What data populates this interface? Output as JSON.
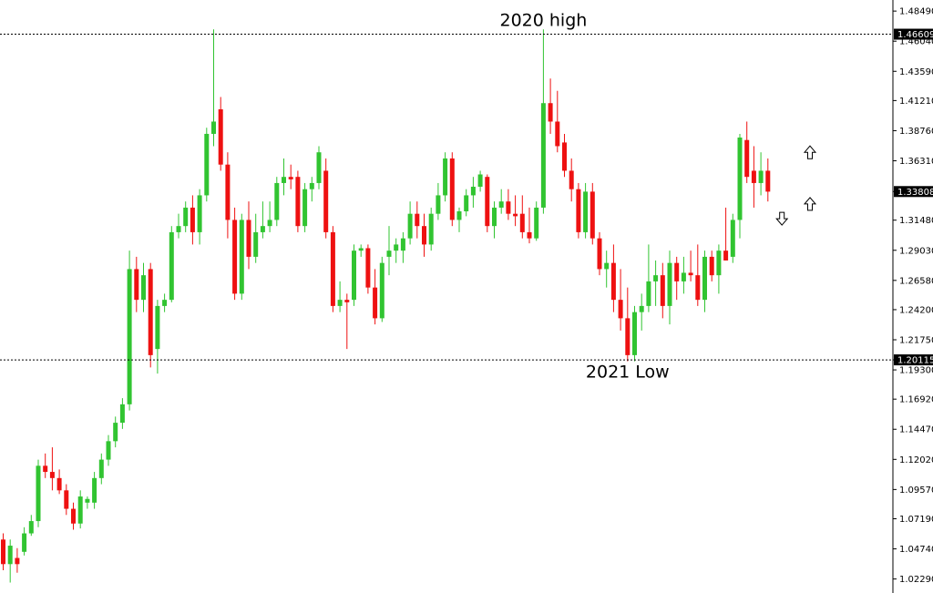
{
  "chart_data": {
    "type": "candlestick",
    "colors": {
      "up": "#31c431",
      "down": "#ee1111",
      "axis": "#000000"
    },
    "y_axis": {
      "ticks": [
        "1.48490",
        "1.46040",
        "1.43590",
        "1.41210",
        "1.38760",
        "1.36310",
        "1.33808",
        "1.31480",
        "1.29030",
        "1.26580",
        "1.24200",
        "1.21750",
        "1.20115",
        "1.19300",
        "1.16920",
        "1.14470",
        "1.12020",
        "1.09570",
        "1.07190",
        "1.04740",
        "1.02290"
      ],
      "range": [
        1.0115,
        1.4939
      ]
    },
    "horizontal_lines": [
      {
        "value": 1.46609,
        "label": "1.46609",
        "style": "dotted"
      },
      {
        "value": 1.20115,
        "label": "1.20115",
        "style": "dotted"
      }
    ],
    "current_price": {
      "value": 1.33808,
      "label": "1.33808"
    },
    "annotations": [
      {
        "text": "2020 high",
        "x_index": 77,
        "y": 1.478
      },
      {
        "text": "2021 Low",
        "x_index": 89,
        "y": 1.192
      }
    ],
    "markers": [
      {
        "icon": "arrow-up-icon",
        "x_index": 115,
        "y": 1.37
      },
      {
        "icon": "arrow-up-icon",
        "x_index": 115,
        "y": 1.328
      },
      {
        "icon": "arrow-down-icon",
        "x_index": 111,
        "y": 1.316
      }
    ],
    "candles": [
      [
        1.055,
        1.06,
        1.03,
        1.035
      ],
      [
        1.035,
        1.055,
        1.02,
        1.05
      ],
      [
        1.04,
        1.048,
        1.028,
        1.035
      ],
      [
        1.045,
        1.065,
        1.042,
        1.06
      ],
      [
        1.06,
        1.075,
        1.058,
        1.07
      ],
      [
        1.07,
        1.12,
        1.065,
        1.115
      ],
      [
        1.115,
        1.125,
        1.105,
        1.11
      ],
      [
        1.11,
        1.13,
        1.095,
        1.105
      ],
      [
        1.105,
        1.112,
        1.092,
        1.095
      ],
      [
        1.095,
        1.1,
        1.075,
        1.08
      ],
      [
        1.08,
        1.085,
        1.063,
        1.068
      ],
      [
        1.068,
        1.095,
        1.064,
        1.09
      ],
      [
        1.085,
        1.09,
        1.08,
        1.088
      ],
      [
        1.085,
        1.11,
        1.08,
        1.105
      ],
      [
        1.105,
        1.125,
        1.1,
        1.12
      ],
      [
        1.12,
        1.14,
        1.115,
        1.135
      ],
      [
        1.135,
        1.155,
        1.13,
        1.15
      ],
      [
        1.15,
        1.17,
        1.145,
        1.165
      ],
      [
        1.165,
        1.29,
        1.16,
        1.275
      ],
      [
        1.275,
        1.285,
        1.24,
        1.25
      ],
      [
        1.25,
        1.28,
        1.24,
        1.27
      ],
      [
        1.275,
        1.28,
        1.195,
        1.205
      ],
      [
        1.21,
        1.25,
        1.19,
        1.245
      ],
      [
        1.245,
        1.255,
        1.24,
        1.25
      ],
      [
        1.25,
        1.31,
        1.248,
        1.305
      ],
      [
        1.305,
        1.32,
        1.3,
        1.31
      ],
      [
        1.31,
        1.33,
        1.305,
        1.325
      ],
      [
        1.325,
        1.335,
        1.295,
        1.305
      ],
      [
        1.305,
        1.34,
        1.295,
        1.335
      ],
      [
        1.335,
        1.39,
        1.33,
        1.385
      ],
      [
        1.385,
        1.47,
        1.375,
        1.395
      ],
      [
        1.405,
        1.415,
        1.355,
        1.36
      ],
      [
        1.36,
        1.37,
        1.3,
        1.315
      ],
      [
        1.315,
        1.325,
        1.25,
        1.255
      ],
      [
        1.255,
        1.32,
        1.25,
        1.315
      ],
      [
        1.315,
        1.33,
        1.275,
        1.285
      ],
      [
        1.285,
        1.32,
        1.28,
        1.305
      ],
      [
        1.305,
        1.33,
        1.3,
        1.31
      ],
      [
        1.31,
        1.33,
        1.305,
        1.315
      ],
      [
        1.315,
        1.35,
        1.31,
        1.345
      ],
      [
        1.345,
        1.365,
        1.335,
        1.35
      ],
      [
        1.35,
        1.36,
        1.34,
        1.348
      ],
      [
        1.35,
        1.355,
        1.305,
        1.31
      ],
      [
        1.31,
        1.345,
        1.305,
        1.34
      ],
      [
        1.34,
        1.35,
        1.33,
        1.345
      ],
      [
        1.345,
        1.375,
        1.34,
        1.37
      ],
      [
        1.355,
        1.365,
        1.3,
        1.305
      ],
      [
        1.305,
        1.31,
        1.24,
        1.245
      ],
      [
        1.245,
        1.265,
        1.24,
        1.25
      ],
      [
        1.25,
        1.255,
        1.21,
        1.248
      ],
      [
        1.25,
        1.295,
        1.245,
        1.29
      ],
      [
        1.29,
        1.295,
        1.285,
        1.292
      ],
      [
        1.292,
        1.295,
        1.255,
        1.26
      ],
      [
        1.26,
        1.275,
        1.23,
        1.235
      ],
      [
        1.235,
        1.285,
        1.232,
        1.28
      ],
      [
        1.285,
        1.31,
        1.27,
        1.29
      ],
      [
        1.29,
        1.3,
        1.28,
        1.295
      ],
      [
        1.29,
        1.305,
        1.28,
        1.3
      ],
      [
        1.3,
        1.33,
        1.295,
        1.32
      ],
      [
        1.32,
        1.33,
        1.3,
        1.31
      ],
      [
        1.31,
        1.32,
        1.285,
        1.295
      ],
      [
        1.295,
        1.325,
        1.29,
        1.32
      ],
      [
        1.32,
        1.345,
        1.315,
        1.335
      ],
      [
        1.335,
        1.37,
        1.33,
        1.365
      ],
      [
        1.365,
        1.37,
        1.31,
        1.315
      ],
      [
        1.315,
        1.325,
        1.305,
        1.322
      ],
      [
        1.322,
        1.34,
        1.318,
        1.335
      ],
      [
        1.335,
        1.35,
        1.325,
        1.342
      ],
      [
        1.342,
        1.355,
        1.338,
        1.352
      ],
      [
        1.35,
        1.352,
        1.305,
        1.31
      ],
      [
        1.31,
        1.33,
        1.3,
        1.325
      ],
      [
        1.325,
        1.34,
        1.32,
        1.33
      ],
      [
        1.33,
        1.34,
        1.315,
        1.32
      ],
      [
        1.32,
        1.335,
        1.31,
        1.318
      ],
      [
        1.32,
        1.335,
        1.3,
        1.305
      ],
      [
        1.305,
        1.325,
        1.296,
        1.3
      ],
      [
        1.3,
        1.33,
        1.298,
        1.325
      ],
      [
        1.325,
        1.47,
        1.32,
        1.41
      ],
      [
        1.41,
        1.43,
        1.385,
        1.395
      ],
      [
        1.395,
        1.42,
        1.37,
        1.375
      ],
      [
        1.378,
        1.385,
        1.35,
        1.355
      ],
      [
        1.355,
        1.365,
        1.33,
        1.34
      ],
      [
        1.34,
        1.345,
        1.3,
        1.305
      ],
      [
        1.305,
        1.345,
        1.3,
        1.338
      ],
      [
        1.338,
        1.345,
        1.295,
        1.3
      ],
      [
        1.3,
        1.305,
        1.27,
        1.275
      ],
      [
        1.275,
        1.29,
        1.26,
        1.28
      ],
      [
        1.28,
        1.295,
        1.24,
        1.25
      ],
      [
        1.25,
        1.275,
        1.225,
        1.235
      ],
      [
        1.235,
        1.26,
        1.2,
        1.205
      ],
      [
        1.205,
        1.245,
        1.2,
        1.24
      ],
      [
        1.24,
        1.255,
        1.225,
        1.245
      ],
      [
        1.245,
        1.295,
        1.24,
        1.265
      ],
      [
        1.265,
        1.282,
        1.245,
        1.27
      ],
      [
        1.27,
        1.28,
        1.235,
        1.245
      ],
      [
        1.245,
        1.29,
        1.23,
        1.28
      ],
      [
        1.28,
        1.285,
        1.25,
        1.265
      ],
      [
        1.265,
        1.285,
        1.255,
        1.272
      ],
      [
        1.272,
        1.29,
        1.265,
        1.27
      ],
      [
        1.27,
        1.295,
        1.245,
        1.25
      ],
      [
        1.25,
        1.29,
        1.24,
        1.285
      ],
      [
        1.285,
        1.29,
        1.265,
        1.27
      ],
      [
        1.27,
        1.295,
        1.255,
        1.29
      ],
      [
        1.29,
        1.325,
        1.282,
        1.282
      ],
      [
        1.285,
        1.32,
        1.28,
        1.315
      ],
      [
        1.315,
        1.385,
        1.3,
        1.382
      ],
      [
        1.38,
        1.395,
        1.345,
        1.35
      ],
      [
        1.355,
        1.375,
        1.325,
        1.345
      ],
      [
        1.345,
        1.37,
        1.335,
        1.355
      ],
      [
        1.355,
        1.365,
        1.33,
        1.338
      ]
    ]
  }
}
